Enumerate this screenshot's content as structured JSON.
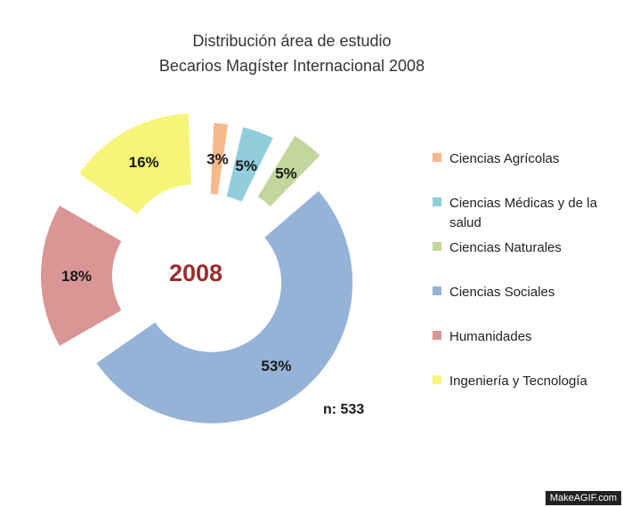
{
  "chart_data": {
    "type": "pie",
    "title": "Distribución área de estudio",
    "subtitle": "Becarios Magíster Internacional 2008",
    "center_label": "2008",
    "center_color": "#9b2d2d",
    "note": "n: 533",
    "legend_position": "right",
    "categories": [
      "Ciencias Agrícolas",
      "Ciencias Médicas y de la salud",
      "Ciencias Naturales",
      "Ciencias Sociales",
      "Humanidades",
      "Ingeniería y Tecnología"
    ],
    "values": [
      3,
      5,
      5,
      53,
      18,
      16
    ],
    "value_labels": [
      "3%",
      "5%",
      "5%",
      "53%",
      "18%",
      "16%"
    ],
    "legend_labels": [
      [
        "Ciencias Agrícolas"
      ],
      [
        "Ciencias Médicas y de la",
        "salud"
      ],
      [
        "Ciencias Naturales"
      ],
      [
        "Ciencias Sociales"
      ],
      [
        "Humanidades"
      ],
      [
        "Ingeniería y Tecnología"
      ]
    ],
    "colors": [
      "#f8b98a",
      "#92cddc",
      "#c3d69b",
      "#95b3d7",
      "#d99694",
      "#f5f57a"
    ]
  },
  "watermark": "MakeAGIF.com"
}
